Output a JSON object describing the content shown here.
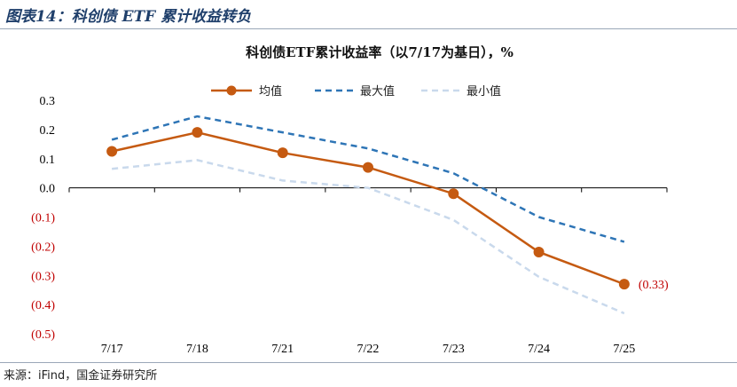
{
  "figure_title": "图表14：科创债 ETF 累计收益转负",
  "source": "来源：iFind，国金证券研究所",
  "colors": {
    "mean": "#c55a11",
    "max": "#2e75b6",
    "min": "#c9d9ec",
    "negative_tick": "#c00000",
    "positive_tick": "#000000"
  },
  "chart_data": {
    "type": "line",
    "title": "科创债ETF累计收益率（以7/17为基日），%",
    "xlabel": "",
    "ylabel": "",
    "categories": [
      "7/17",
      "7/18",
      "7/21",
      "7/22",
      "7/23",
      "7/24",
      "7/25"
    ],
    "ylim": [
      -0.5,
      0.3
    ],
    "yticks": [
      0.3,
      0.2,
      0.1,
      0.0,
      -0.1,
      -0.2,
      -0.3,
      -0.4,
      -0.5
    ],
    "ytick_labels": [
      "0.3",
      "0.2",
      "0.1",
      "0.0",
      "(0.1)",
      "(0.2)",
      "(0.3)",
      "(0.4)",
      "(0.5)"
    ],
    "grid": false,
    "legend": "top",
    "series": [
      {
        "name": "均值",
        "style": "solid-marker",
        "values": [
          0.125,
          0.19,
          0.12,
          0.07,
          -0.02,
          -0.22,
          -0.33
        ]
      },
      {
        "name": "最大值",
        "style": "dashed",
        "values": [
          0.165,
          0.245,
          0.19,
          0.135,
          0.05,
          -0.1,
          -0.185
        ]
      },
      {
        "name": "最小值",
        "style": "dashed",
        "values": [
          0.065,
          0.095,
          0.025,
          0.0,
          -0.11,
          -0.305,
          -0.43
        ]
      }
    ],
    "annotations": [
      {
        "series": "均值",
        "category": "7/25",
        "text": "(0.33)"
      }
    ]
  }
}
